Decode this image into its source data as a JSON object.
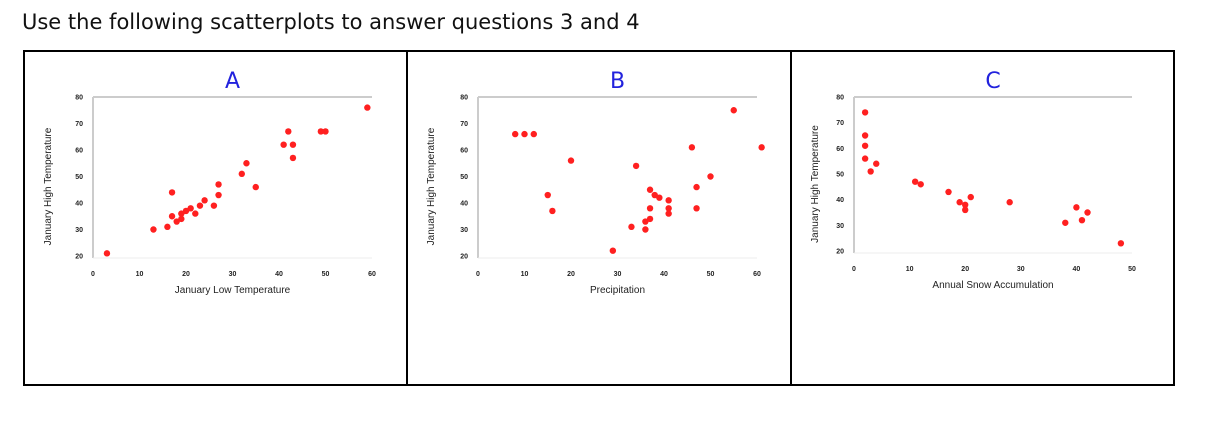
{
  "heading": "Use the following scatterplots to answer questions 3 and 4",
  "colors": {
    "points": "#ff2020",
    "letter": "#2222dd",
    "axis": "#cccccc"
  },
  "chart_data": [
    {
      "type": "scatter",
      "title": "A",
      "xlabel": "January Low Temperature",
      "ylabel": "January High Temperature",
      "xlim": [
        0,
        60
      ],
      "ylim": [
        20,
        80
      ],
      "xticks": [
        0,
        10,
        20,
        30,
        40,
        50,
        60
      ],
      "yticks": [
        20,
        30,
        40,
        50,
        60,
        70,
        80
      ],
      "x": [
        3,
        13,
        16,
        17,
        17,
        18,
        19,
        19,
        20,
        21,
        22,
        23,
        24,
        26,
        27,
        27,
        32,
        33,
        35,
        41,
        42,
        43,
        43,
        49,
        50,
        59
      ],
      "y": [
        21,
        30,
        31,
        35,
        44,
        33,
        34,
        36,
        37,
        38,
        36,
        39,
        41,
        39,
        43,
        47,
        51,
        55,
        46,
        62,
        67,
        62,
        57,
        67,
        67,
        76
      ]
    },
    {
      "type": "scatter",
      "title": "B",
      "xlabel": "Precipitation",
      "ylabel": "January High Temperature",
      "xlim": [
        0,
        60
      ],
      "ylim": [
        20,
        80
      ],
      "xticks": [
        0,
        10,
        20,
        30,
        40,
        50,
        60
      ],
      "yticks": [
        20,
        30,
        40,
        50,
        60,
        70,
        80
      ],
      "x": [
        8,
        10,
        12,
        15,
        16,
        20,
        29,
        33,
        34,
        36,
        36,
        37,
        37,
        37,
        38,
        39,
        41,
        41,
        41,
        46,
        47,
        47,
        50,
        55,
        61
      ],
      "y": [
        66,
        66,
        66,
        43,
        37,
        56,
        22,
        31,
        54,
        30,
        33,
        34,
        38,
        45,
        43,
        42,
        41,
        38,
        36,
        61,
        46,
        38,
        50,
        75,
        61
      ]
    },
    {
      "type": "scatter",
      "title": "C",
      "xlabel": "Annual Snow Accumulation",
      "ylabel": "January High Temperature",
      "xlim": [
        0,
        50
      ],
      "ylim": [
        20,
        80
      ],
      "xticks": [
        0,
        10,
        20,
        30,
        40,
        50
      ],
      "yticks": [
        20,
        30,
        40,
        50,
        60,
        70,
        80
      ],
      "x": [
        2,
        2,
        2,
        2,
        3,
        4,
        11,
        12,
        17,
        19,
        20,
        20,
        21,
        28,
        38,
        40,
        41,
        42,
        48
      ],
      "y": [
        74,
        65,
        61,
        56,
        51,
        54,
        47,
        46,
        43,
        39,
        36,
        38,
        41,
        39,
        31,
        37,
        32,
        35,
        23
      ]
    }
  ]
}
